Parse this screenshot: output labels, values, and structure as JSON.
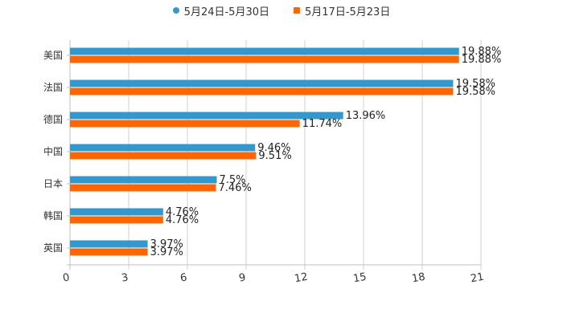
{
  "legend": {
    "series0": "5月24日-5月30日",
    "series1": "5月17日-5月23日"
  },
  "chart_data": {
    "type": "bar",
    "orientation": "horizontal",
    "categories": [
      "美国",
      "法国",
      "德国",
      "中国",
      "日本",
      "韩国",
      "英国"
    ],
    "series": [
      {
        "name": "5月24日-5月30日",
        "color": "#3399cc",
        "values": [
          19.88,
          19.58,
          13.96,
          9.46,
          7.5,
          4.76,
          3.97
        ],
        "labels": [
          "19.88%",
          "19.58%",
          "13.96%",
          "9.46%",
          "7.5%",
          "4.76%",
          "3.97%"
        ]
      },
      {
        "name": "5月17日-5月23日",
        "color": "#ff6600",
        "values": [
          19.88,
          19.58,
          11.74,
          9.51,
          7.46,
          4.76,
          3.97
        ],
        "labels": [
          "19.88%",
          "19.58%",
          "11.74%",
          "9.51%",
          "7.46%",
          "4.76%",
          "3.97%"
        ]
      }
    ],
    "xlim": [
      0,
      21
    ],
    "xticks": [
      "0",
      "3",
      "6",
      "9",
      "12",
      "15",
      "18",
      "21"
    ],
    "xtick_values": [
      0,
      3,
      6,
      9,
      12,
      15,
      18,
      21
    ],
    "grid": true,
    "legend_position": "top-center"
  }
}
